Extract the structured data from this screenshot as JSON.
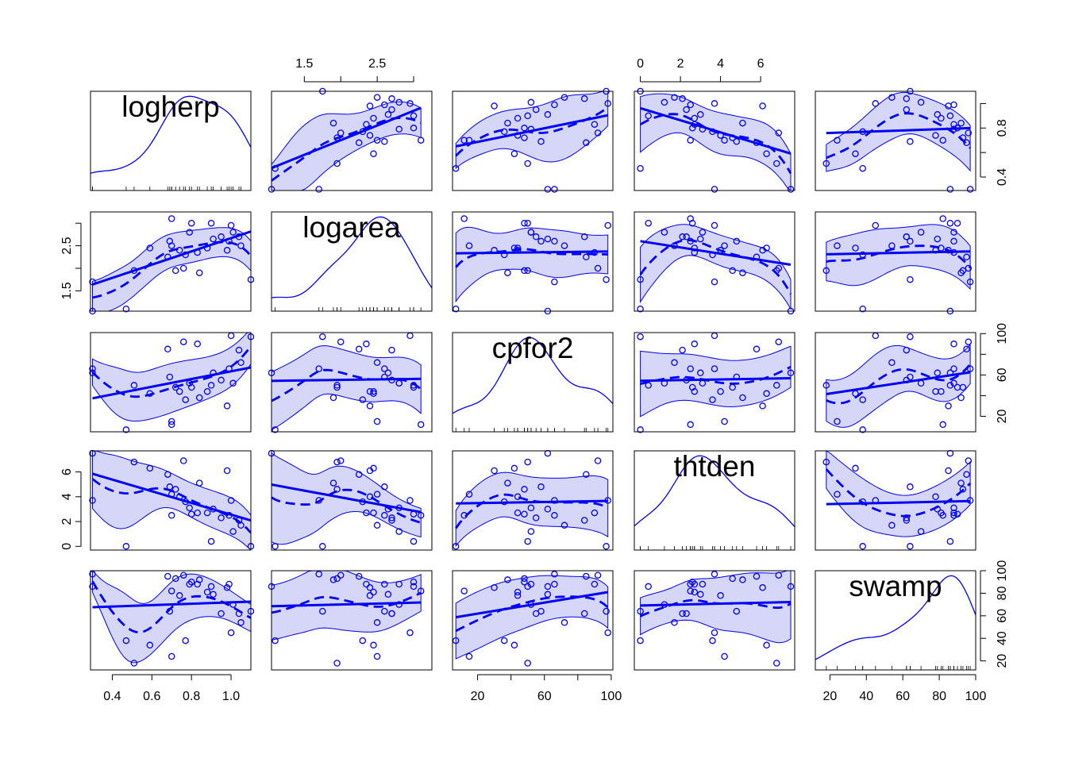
{
  "chart_data": {
    "type": "scatter",
    "title": "",
    "variables": [
      {
        "name": "logherp",
        "range": [
          0.29,
          1.1
        ],
        "ticks": [
          0.4,
          0.6,
          0.8,
          1.0
        ],
        "tick_labels": [
          "0.4",
          "0.6",
          "0.8",
          "1.0"
        ],
        "right_ticks": [
          0.4,
          0.6,
          0.8,
          1.0
        ],
        "right_tick_labels": [
          "0.4",
          "0.8"
        ],
        "right_labeled": [
          0.4,
          0.8
        ]
      },
      {
        "name": "logarea",
        "range": [
          1.05,
          3.25
        ],
        "ticks": [
          1.5,
          2.0,
          2.5,
          3.0
        ],
        "tick_labels": [
          "1.5",
          "2.5"
        ],
        "tick_labeled": [
          1.5,
          2.5
        ]
      },
      {
        "name": "cpfor2",
        "range": [
          5,
          101
        ],
        "ticks": [
          20,
          40,
          60,
          80,
          100
        ],
        "tick_labels": [
          "20",
          "60",
          "100"
        ],
        "tick_labeled": [
          20,
          60,
          100
        ]
      },
      {
        "name": "thtden",
        "range": [
          -0.3,
          7.7
        ],
        "ticks": [
          0,
          2,
          4,
          6
        ],
        "tick_labels": [
          "0",
          "2",
          "4",
          "6"
        ]
      },
      {
        "name": "swamp",
        "range": [
          12,
          100
        ],
        "ticks": [
          20,
          40,
          60,
          80,
          100
        ],
        "tick_labels": [
          "20",
          "40",
          "60",
          "80",
          "100"
        ]
      }
    ],
    "observations": [
      {
        "logherp": 0.3,
        "logarea": 1.7,
        "cpfor2": 66,
        "thtden": 3.7,
        "swamp": 97
      },
      {
        "logherp": 0.3,
        "logarea": 1.05,
        "cpfor2": 62,
        "thtden": 7.5,
        "swamp": 86
      },
      {
        "logherp": 0.47,
        "logarea": 1.1,
        "cpfor2": 7,
        "thtden": 0.0,
        "swamp": 38
      },
      {
        "logherp": 0.51,
        "logarea": 1.95,
        "cpfor2": 50,
        "thtden": 6.8,
        "swamp": 18
      },
      {
        "logherp": 0.59,
        "logarea": 2.45,
        "cpfor2": 42,
        "thtden": 6.3,
        "swamp": 34
      },
      {
        "logherp": 0.68,
        "logarea": 2.25,
        "cpfor2": 85,
        "thtden": 5.8,
        "swamp": 95
      },
      {
        "logherp": 0.69,
        "logarea": 2.6,
        "cpfor2": 58,
        "thtden": 4.8,
        "swamp": 64
      },
      {
        "logherp": 0.7,
        "logarea": 3.1,
        "cpfor2": 12,
        "thtden": 2.5,
        "swamp": 82
      },
      {
        "logherp": 0.7,
        "logarea": 2.5,
        "cpfor2": 15,
        "thtden": 4.2,
        "swamp": 24
      },
      {
        "logherp": 0.72,
        "logarea": 1.95,
        "cpfor2": 48,
        "thtden": 4.6,
        "swamp": 93
      },
      {
        "logherp": 0.74,
        "logarea": 2.4,
        "cpfor2": 44,
        "thtden": 4.0,
        "swamp": 78
      },
      {
        "logherp": 0.76,
        "logarea": 2.0,
        "cpfor2": 92,
        "thtden": 6.9,
        "swamp": 96
      },
      {
        "logherp": 0.77,
        "logarea": 2.3,
        "cpfor2": 36,
        "thtden": 3.6,
        "swamp": 38
      },
      {
        "logherp": 0.79,
        "logarea": 2.8,
        "cpfor2": 52,
        "thtden": 3.1,
        "swamp": 88
      },
      {
        "logherp": 0.8,
        "logarea": 3.0,
        "cpfor2": 48,
        "thtden": 2.6,
        "swamp": 90
      },
      {
        "logherp": 0.83,
        "logarea": 2.35,
        "cpfor2": 90,
        "thtden": 2.7,
        "swamp": 88
      },
      {
        "logherp": 0.84,
        "logarea": 1.9,
        "cpfor2": 38,
        "thtden": 5.1,
        "swamp": 92
      },
      {
        "logherp": 0.88,
        "logarea": 2.45,
        "cpfor2": 44,
        "thtden": 2.7,
        "swamp": 81
      },
      {
        "logherp": 0.9,
        "logarea": 3.0,
        "cpfor2": 50,
        "thtden": 0.4,
        "swamp": 86
      },
      {
        "logherp": 0.91,
        "logarea": 2.65,
        "cpfor2": 62,
        "thtden": 3.0,
        "swamp": 79
      },
      {
        "logherp": 0.95,
        "logarea": 2.7,
        "cpfor2": 55,
        "thtden": 2.3,
        "swamp": 62
      },
      {
        "logherp": 0.99,
        "logarea": 2.6,
        "cpfor2": 66,
        "thtden": 2.5,
        "swamp": 88
      },
      {
        "logherp": 1.0,
        "logarea": 2.95,
        "cpfor2": 98,
        "thtden": 3.7,
        "swamp": 45
      },
      {
        "logherp": 1.01,
        "logarea": 2.8,
        "cpfor2": 52,
        "thtden": 1.2,
        "swamp": 70
      },
      {
        "logherp": 1.04,
        "logarea": 2.7,
        "cpfor2": 84,
        "thtden": 2.1,
        "swamp": 62
      },
      {
        "logherp": 1.05,
        "logarea": 2.5,
        "cpfor2": 72,
        "thtden": 1.7,
        "swamp": 54
      },
      {
        "logherp": 1.1,
        "logarea": 1.75,
        "cpfor2": 97,
        "thtden": 0.0,
        "swamp": 64
      },
      {
        "logherp": 0.98,
        "logarea": 2.4,
        "cpfor2": 30,
        "thtden": 6.1,
        "swamp": 85
      }
    ],
    "smoother": "loess",
    "regression_line": "least squares",
    "diagonal": "density",
    "grid": false,
    "legend": "none",
    "colors": {
      "points": "#0000ff",
      "band_fill": "#d6d6f8",
      "axes": "#000000"
    }
  }
}
